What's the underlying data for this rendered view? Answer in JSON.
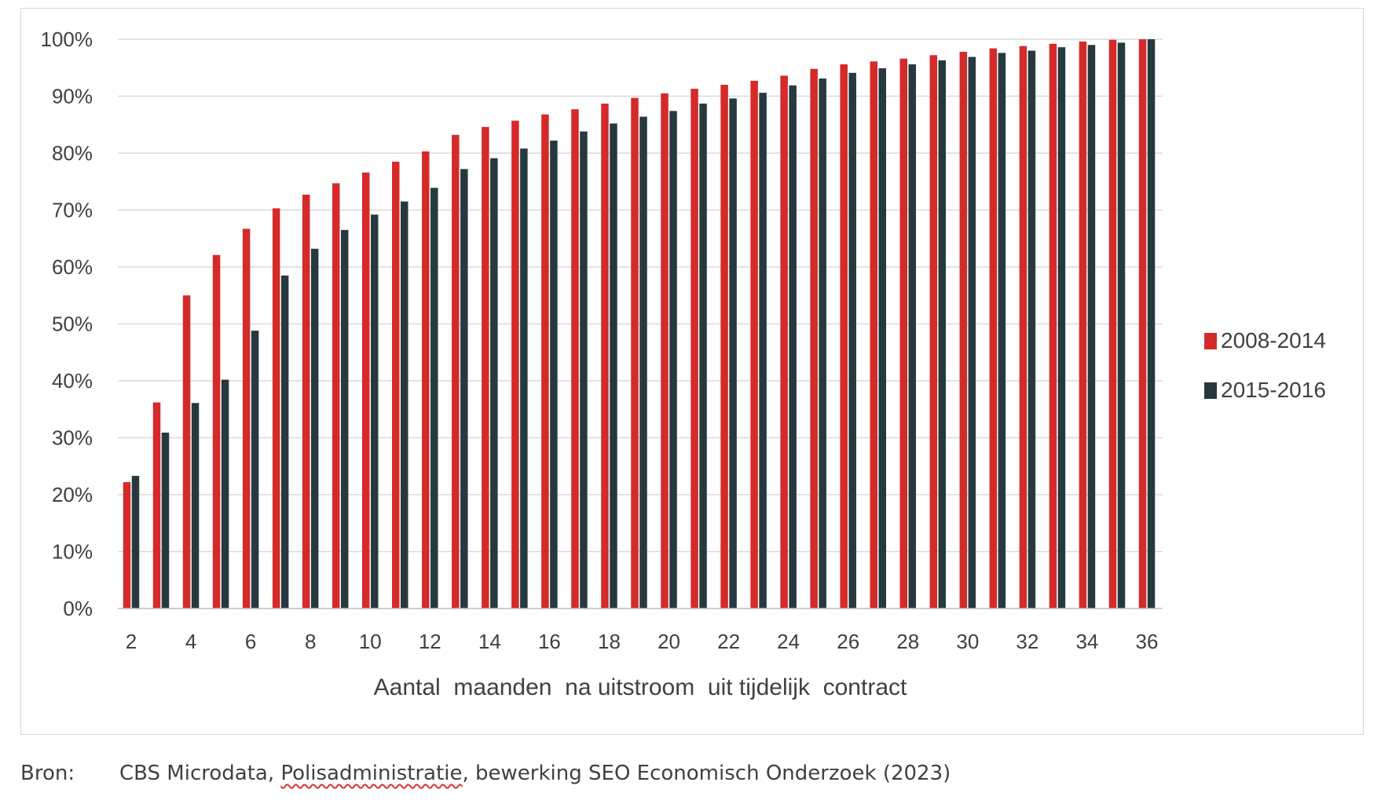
{
  "chart_data": {
    "type": "bar",
    "xlabel": "Aantal  maanden  na uitstroom  uit tijdelijk  contract",
    "ylabel": "",
    "ylim": [
      0,
      100
    ],
    "y_ticks": [
      "0%",
      "10%",
      "20%",
      "30%",
      "40%",
      "50%",
      "60%",
      "70%",
      "80%",
      "90%",
      "100%"
    ],
    "y_tick_values": [
      0,
      10,
      20,
      30,
      40,
      50,
      60,
      70,
      80,
      90,
      100
    ],
    "x_tick_labels": [
      "2",
      "4",
      "6",
      "8",
      "10",
      "12",
      "14",
      "16",
      "18",
      "20",
      "22",
      "24",
      "26",
      "28",
      "30",
      "32",
      "34",
      "36"
    ],
    "categories": [
      2,
      3,
      4,
      5,
      6,
      7,
      8,
      9,
      10,
      11,
      12,
      13,
      14,
      15,
      16,
      17,
      18,
      19,
      20,
      21,
      22,
      23,
      24,
      25,
      26,
      27,
      28,
      29,
      30,
      31,
      32,
      33,
      34,
      35,
      36
    ],
    "series": [
      {
        "name": "2008-2014",
        "color": "#d42a2a",
        "values": [
          22.2,
          36.2,
          55.0,
          62.1,
          66.7,
          70.3,
          72.7,
          74.7,
          76.6,
          78.5,
          80.3,
          83.2,
          84.6,
          85.7,
          86.8,
          87.7,
          88.7,
          89.7,
          90.5,
          91.3,
          92.0,
          92.7,
          93.6,
          94.8,
          95.6,
          96.1,
          96.6,
          97.2,
          97.8,
          98.4,
          98.8,
          99.2,
          99.6,
          99.9,
          100.0
        ]
      },
      {
        "name": "2015-2016",
        "color": "#26393f",
        "values": [
          23.3,
          30.9,
          36.1,
          40.2,
          48.8,
          58.5,
          63.2,
          66.5,
          69.2,
          71.5,
          73.9,
          77.2,
          79.1,
          80.8,
          82.2,
          83.8,
          85.2,
          86.4,
          87.4,
          88.7,
          89.6,
          90.6,
          91.9,
          93.1,
          94.1,
          94.9,
          95.6,
          96.3,
          96.9,
          97.6,
          98.0,
          98.6,
          99.0,
          99.4,
          100.0
        ]
      }
    ],
    "grid": true,
    "legend_position": "right"
  },
  "source": {
    "label": "Bron:",
    "text_before": "CBS Microdata, ",
    "text_underlined": "Polisadministratie",
    "text_after": ", bewerking SEO Economisch Onderzoek (2023)"
  }
}
